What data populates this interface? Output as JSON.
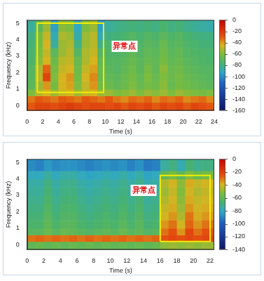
{
  "chart_data": [
    {
      "type": "heatmap",
      "x_label": "Time (s)",
      "y_label": "Frequency (kHz)",
      "grid": false,
      "xlim": [
        0,
        24
      ],
      "xticks": [
        0,
        2,
        4,
        6,
        8,
        10,
        12,
        14,
        16,
        18,
        20,
        22,
        24
      ],
      "ylim": [
        -0.3,
        5.2
      ],
      "yticks": [
        0,
        1,
        2,
        3,
        4,
        5
      ],
      "x_edges": [
        0,
        1,
        2,
        3,
        4,
        5,
        6,
        7,
        8,
        9,
        10,
        11,
        12,
        13,
        14,
        15,
        16,
        17,
        18,
        19,
        20,
        21,
        22,
        23,
        24
      ],
      "y_edges": [
        -0.3,
        0.2,
        0.6,
        1,
        1.5,
        2,
        2.5,
        3,
        3.5,
        4,
        4.5,
        5.2
      ],
      "cells": [
        [
          -30,
          -25,
          -25,
          -28,
          -25,
          -22,
          -25,
          -28,
          -25,
          -25,
          -28,
          -25,
          -30,
          -25,
          -28,
          -25,
          -30,
          -25,
          -28,
          -25,
          -30,
          -25,
          -28,
          -30
        ],
        [
          -35,
          -30,
          -32,
          -35,
          -30,
          -32,
          -35,
          -30,
          -32,
          -35,
          -30,
          -35,
          -38,
          -33,
          -35,
          -32,
          -38,
          -33,
          -35,
          -32,
          -38,
          -35,
          -33,
          -38
        ],
        [
          -60,
          -50,
          -45,
          -55,
          -48,
          -45,
          -55,
          -48,
          -45,
          -55,
          -55,
          -60,
          -58,
          -55,
          -60,
          -55,
          -58,
          -55,
          -60,
          -55,
          -58,
          -60,
          -62,
          -60
        ],
        [
          -70,
          -55,
          -40,
          -62,
          -45,
          -42,
          -60,
          -48,
          -40,
          -62,
          -65,
          -68,
          -65,
          -60,
          -66,
          -62,
          -64,
          -58,
          -66,
          -62,
          -64,
          -66,
          -68,
          -70
        ],
        [
          -72,
          -50,
          -25,
          -60,
          -45,
          -40,
          -62,
          -45,
          -38,
          -65,
          -68,
          -70,
          -66,
          -62,
          -68,
          -60,
          -66,
          -60,
          -65,
          -62,
          -66,
          -68,
          -70,
          -72
        ],
        [
          -72,
          -52,
          -32,
          -62,
          -48,
          -45,
          -64,
          -48,
          -42,
          -66,
          -70,
          -72,
          -68,
          -64,
          -70,
          -62,
          -68,
          -58,
          -66,
          -64,
          -68,
          -70,
          -72,
          -72
        ],
        [
          -75,
          -58,
          -45,
          -65,
          -50,
          -48,
          -66,
          -52,
          -45,
          -68,
          -72,
          -72,
          -70,
          -66,
          -70,
          -66,
          -68,
          -62,
          -68,
          -66,
          -70,
          -72,
          -74,
          -75
        ],
        [
          -76,
          -60,
          -48,
          -70,
          -55,
          -50,
          -72,
          -52,
          -48,
          -72,
          -74,
          -74,
          -72,
          -68,
          -72,
          -68,
          -70,
          -64,
          -70,
          -68,
          -72,
          -74,
          -75,
          -76
        ],
        [
          -78,
          -62,
          -45,
          -85,
          -55,
          -52,
          -80,
          -55,
          -50,
          -82,
          -76,
          -76,
          -74,
          -70,
          -74,
          -70,
          -72,
          -66,
          -72,
          -70,
          -74,
          -76,
          -78,
          -78
        ],
        [
          -80,
          -62,
          -48,
          -90,
          -52,
          -55,
          -88,
          -55,
          -50,
          -90,
          -80,
          -78,
          -76,
          -72,
          -76,
          -72,
          -74,
          -70,
          -74,
          -72,
          -76,
          -78,
          -80,
          -80
        ],
        [
          -85,
          -70,
          -55,
          -95,
          -58,
          -60,
          -92,
          -60,
          -55,
          -95,
          -85,
          -82,
          -80,
          -78,
          -80,
          -78,
          -80,
          -76,
          -80,
          -78,
          -82,
          -84,
          -86,
          -88
        ]
      ],
      "colorbar": {
        "lim": [
          -160,
          0
        ],
        "ticks": [
          -160,
          -140,
          -120,
          -100,
          -80,
          -60,
          -40,
          -20,
          0
        ]
      },
      "box": {
        "x": [
          1.3,
          9.8
        ],
        "y": [
          0.8,
          5
        ]
      },
      "annotation": {
        "text": "异常点",
        "x": 12.5,
        "y": 3.6
      }
    },
    {
      "type": "heatmap",
      "x_label": "Time (s)",
      "y_label": "Frequency (kHz)",
      "grid": false,
      "xlim": [
        0,
        22.5
      ],
      "xticks": [
        0,
        2,
        4,
        6,
        8,
        10,
        12,
        14,
        16,
        18,
        20,
        22
      ],
      "ylim": [
        -0.3,
        5.2
      ],
      "yticks": [
        0,
        1,
        2,
        3,
        4,
        5
      ],
      "x_edges": [
        0,
        1,
        2,
        3,
        4,
        5,
        6,
        7,
        8,
        9,
        10,
        11,
        12,
        13,
        14,
        15,
        16,
        17,
        18,
        19,
        20,
        21,
        22.5
      ],
      "y_edges": [
        -0.3,
        0.2,
        0.6,
        1,
        1.5,
        2,
        2.5,
        3,
        3.5,
        4,
        4.5,
        5.2
      ],
      "cells": [
        [
          -60,
          -58,
          -60,
          -58,
          -60,
          -58,
          -60,
          -58,
          -60,
          -58,
          -60,
          -58,
          -60,
          -58,
          -60,
          -58,
          -50,
          -48,
          -50,
          -48,
          -50,
          -48
        ],
        [
          -30,
          -28,
          -30,
          -28,
          -30,
          -28,
          -30,
          -28,
          -30,
          -28,
          -30,
          -28,
          -30,
          -28,
          -30,
          -28,
          -25,
          -22,
          -25,
          -22,
          -25,
          -22
        ],
        [
          -62,
          -62,
          -58,
          -62,
          -58,
          -60,
          -62,
          -64,
          -62,
          -60,
          -62,
          -58,
          -62,
          -60,
          -64,
          -62,
          -30,
          -25,
          -35,
          -22,
          -30,
          -25
        ],
        [
          -66,
          -66,
          -60,
          -66,
          -62,
          -62,
          -66,
          -68,
          -66,
          -64,
          -66,
          -62,
          -66,
          -62,
          -68,
          -66,
          -35,
          -30,
          -40,
          -28,
          -35,
          -30
        ],
        [
          -68,
          -68,
          -62,
          -68,
          -64,
          -64,
          -68,
          -70,
          -68,
          -66,
          -68,
          -64,
          -68,
          -64,
          -70,
          -68,
          -40,
          -35,
          -45,
          -30,
          -38,
          -35
        ],
        [
          -70,
          -70,
          -64,
          -70,
          -66,
          -66,
          -70,
          -72,
          -70,
          -68,
          -70,
          -66,
          -70,
          -66,
          -72,
          -70,
          -42,
          -38,
          -48,
          -35,
          -40,
          -38
        ],
        [
          -72,
          -72,
          -66,
          -72,
          -68,
          -68,
          -72,
          -74,
          -72,
          -70,
          -72,
          -68,
          -72,
          -68,
          -74,
          -72,
          -45,
          -40,
          -50,
          -38,
          -42,
          -40
        ],
        [
          -74,
          -74,
          -68,
          -74,
          -70,
          -70,
          -74,
          -76,
          -74,
          -72,
          -74,
          -70,
          -74,
          -70,
          -76,
          -74,
          -48,
          -42,
          -52,
          -40,
          -45,
          -42
        ],
        [
          -76,
          -76,
          -70,
          -76,
          -72,
          -72,
          -76,
          -78,
          -76,
          -74,
          -76,
          -72,
          -76,
          -72,
          -78,
          -76,
          -45,
          -40,
          -50,
          -38,
          -42,
          -40
        ],
        [
          -80,
          -80,
          -75,
          -80,
          -76,
          -76,
          -80,
          -82,
          -80,
          -78,
          -80,
          -76,
          -80,
          -76,
          -82,
          -80,
          -60,
          -55,
          -62,
          -52,
          -58,
          -55
        ],
        [
          -88,
          -90,
          -85,
          -88,
          -86,
          -86,
          -88,
          -90,
          -88,
          -86,
          -88,
          -86,
          -90,
          -86,
          -92,
          -90,
          -75,
          -70,
          -78,
          -68,
          -72,
          -70
        ]
      ],
      "colorbar": {
        "lim": [
          -140,
          0
        ],
        "ticks": [
          -140,
          -120,
          -100,
          -80,
          -60,
          -40,
          -20,
          0
        ]
      },
      "box": {
        "x": [
          16,
          22
        ],
        "y": [
          0.2,
          4.2
        ]
      },
      "annotation": {
        "text": "异常点",
        "x": 14,
        "y": 3.3
      }
    }
  ]
}
